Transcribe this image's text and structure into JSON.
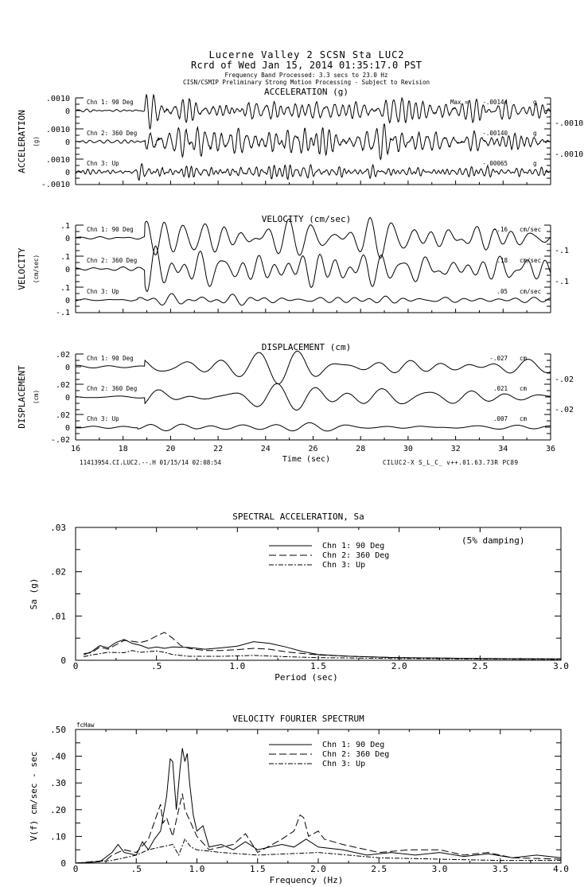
{
  "header": {
    "title_line1": "Lucerne Valley 2    SCSN Sta LUC2",
    "title_line2": "Rcrd of Wed Jan 15, 2014 01:35:17.0 PST",
    "band": "Frequency Band Processed: 3.3 secs to 23.0 Hz",
    "note": "CISN/CSMIP Preliminary Strong Motion Processing - Subject to Revision"
  },
  "footer": {
    "record_id": "11413954.CI.LUC2.--.H 01/15/14 02:08:54",
    "xlabel": "Time (sec)",
    "version": "CILUC2-X  S_L_C_  v++.01.63.73R PC89"
  },
  "chart_data": [
    {
      "type": "line",
      "title": "ACCELERATION (g)",
      "ylabel": "ACCELERATION",
      "yunit": "(g)",
      "xlim": [
        16,
        36
      ],
      "ylim": [
        -0.001,
        0.001
      ],
      "yticks": [
        ".0010",
        "0",
        "-.0010"
      ],
      "max_label": "Max =",
      "channels": [
        {
          "name": "Chn 1: 90 Deg",
          "peak": -0.00144,
          "peak_label": "-.00144",
          "unit": "g"
        },
        {
          "name": "Chn 2: 360 Deg",
          "peak": -0.0014,
          "peak_label": "-.00140",
          "unit": "g"
        },
        {
          "name": "Chn 3: Up",
          "peak": -0.00065,
          "peak_label": "-.00065",
          "unit": "g"
        }
      ]
    },
    {
      "type": "line",
      "title": "VELOCITY (cm/sec)",
      "ylabel": "VELOCITY",
      "yunit": "(cm/sec)",
      "xlim": [
        16,
        36
      ],
      "ylim": [
        -0.1,
        0.1
      ],
      "yticks": [
        ".1",
        "0",
        "-.1"
      ],
      "channels": [
        {
          "name": "Chn 1: 90 Deg",
          "peak": -0.16,
          "peak_label": "-.16",
          "unit": "cm/sec"
        },
        {
          "name": "Chn 2: 360 Deg",
          "peak": 0.18,
          "peak_label": ".18",
          "unit": "cm/sec"
        },
        {
          "name": "Chn 3: Up",
          "peak": 0.05,
          "peak_label": ".05",
          "unit": "cm/sec"
        }
      ]
    },
    {
      "type": "line",
      "title": "DISPLACEMENT (cm)",
      "ylabel": "DISPLACEMENT",
      "yunit": "(cm)",
      "xlim": [
        16,
        36
      ],
      "ylim": [
        -0.02,
        0.02
      ],
      "yticks": [
        ".02",
        "0",
        "-.02"
      ],
      "xticks": [
        "16",
        "18",
        "20",
        "22",
        "24",
        "26",
        "28",
        "30",
        "32",
        "34",
        "36"
      ],
      "channels": [
        {
          "name": "Chn 1: 90 Deg",
          "peak": -0.027,
          "peak_label": "-.027",
          "unit": "cm"
        },
        {
          "name": "Chn 2: 360 Deg",
          "peak": 0.021,
          "peak_label": ".021",
          "unit": "cm"
        },
        {
          "name": "Chn 3: Up",
          "peak": 0.007,
          "peak_label": ".007",
          "unit": "cm"
        }
      ]
    },
    {
      "type": "line",
      "title": "SPECTRAL ACCELERATION, Sa",
      "annotation": "(5% damping)",
      "xlabel": "Period (sec)",
      "ylabel": "Sa (g)",
      "xlim": [
        0,
        3.0
      ],
      "ylim": [
        0,
        0.03
      ],
      "xticks": [
        "0",
        ".5",
        "1.0",
        "1.5",
        "2.0",
        "2.5",
        "3.0"
      ],
      "yticks": [
        "0",
        ".01",
        ".02",
        ".03"
      ],
      "legend_position": "top-center",
      "series": [
        {
          "name": "Chn 1: 90 Deg",
          "style": "solid",
          "x": [
            0.05,
            0.1,
            0.15,
            0.2,
            0.25,
            0.3,
            0.35,
            0.4,
            0.45,
            0.5,
            0.55,
            0.6,
            0.7,
            0.8,
            0.9,
            1.0,
            1.1,
            1.2,
            1.3,
            1.4,
            1.5,
            1.7,
            2.0,
            2.5,
            3.0
          ],
          "y": [
            0.0012,
            0.002,
            0.0033,
            0.0028,
            0.004,
            0.0047,
            0.0038,
            0.0034,
            0.0027,
            0.003,
            0.0027,
            0.003,
            0.0029,
            0.0025,
            0.0028,
            0.0032,
            0.0042,
            0.0038,
            0.003,
            0.002,
            0.0013,
            0.0009,
            0.0006,
            0.0004,
            0.0003
          ]
        },
        {
          "name": "Chn 2: 360 Deg",
          "style": "dashed",
          "x": [
            0.05,
            0.1,
            0.15,
            0.2,
            0.25,
            0.3,
            0.35,
            0.4,
            0.45,
            0.5,
            0.55,
            0.6,
            0.65,
            0.7,
            0.8,
            0.9,
            1.0,
            1.1,
            1.2,
            1.3,
            1.5,
            1.7,
            2.0,
            2.5,
            3.0
          ],
          "y": [
            0.0015,
            0.0017,
            0.003,
            0.0025,
            0.0035,
            0.0045,
            0.0043,
            0.004,
            0.0045,
            0.0055,
            0.0063,
            0.005,
            0.0033,
            0.0027,
            0.0022,
            0.0022,
            0.0024,
            0.0027,
            0.0025,
            0.0019,
            0.0012,
            0.0009,
            0.0006,
            0.0004,
            0.0003
          ]
        },
        {
          "name": "Chn 3: Up",
          "style": "dash-dot",
          "x": [
            0.05,
            0.1,
            0.2,
            0.3,
            0.35,
            0.4,
            0.5,
            0.55,
            0.6,
            0.7,
            0.9,
            1.1,
            1.3,
            1.5,
            2.0,
            3.0
          ],
          "y": [
            0.0008,
            0.0012,
            0.0018,
            0.0017,
            0.0022,
            0.0018,
            0.0021,
            0.0018,
            0.0013,
            0.0009,
            0.0009,
            0.0011,
            0.0008,
            0.0006,
            0.0004,
            0.0002
          ]
        }
      ]
    },
    {
      "type": "line",
      "title": "VELOCITY FOURIER SPECTRUM",
      "corner_label": "fcHaw",
      "xlabel": "Frequency (Hz)",
      "ylabel": "V(f)   cm/sec - sec",
      "xlim": [
        0,
        4.0
      ],
      "ylim": [
        0,
        0.5
      ],
      "xticks": [
        "0",
        ".5",
        "1.0",
        "1.5",
        "2.0",
        "2.5",
        "3.0",
        "3.5",
        "4.0"
      ],
      "yticks": [
        "0",
        ".10",
        ".20",
        ".30",
        ".40",
        ".50"
      ],
      "legend_position": "top-center",
      "series": [
        {
          "name": "Chn 1: 90 Deg",
          "style": "solid",
          "x": [
            0,
            0.2,
            0.3,
            0.35,
            0.4,
            0.5,
            0.55,
            0.6,
            0.65,
            0.7,
            0.75,
            0.78,
            0.8,
            0.83,
            0.86,
            0.88,
            0.9,
            0.92,
            0.94,
            0.97,
            1.0,
            1.05,
            1.1,
            1.2,
            1.3,
            1.4,
            1.5,
            1.6,
            1.7,
            1.8,
            1.9,
            2.0,
            2.2,
            2.4,
            2.6,
            2.8,
            3.0,
            3.2,
            3.4,
            3.6,
            3.8,
            4.0
          ],
          "y": [
            0,
            0.005,
            0.04,
            0.07,
            0.04,
            0.03,
            0.08,
            0.05,
            0.09,
            0.12,
            0.25,
            0.39,
            0.38,
            0.2,
            0.35,
            0.43,
            0.38,
            0.41,
            0.3,
            0.18,
            0.12,
            0.14,
            0.06,
            0.07,
            0.05,
            0.08,
            0.05,
            0.06,
            0.07,
            0.06,
            0.09,
            0.06,
            0.05,
            0.03,
            0.04,
            0.03,
            0.04,
            0.025,
            0.035,
            0.02,
            0.03,
            0.02
          ]
        },
        {
          "name": "Chn 2: 360 Deg",
          "style": "dashed",
          "x": [
            0,
            0.25,
            0.3,
            0.4,
            0.5,
            0.6,
            0.7,
            0.72,
            0.75,
            0.8,
            0.85,
            0.88,
            0.9,
            0.95,
            1.0,
            1.1,
            1.3,
            1.4,
            1.5,
            1.7,
            1.8,
            1.85,
            1.88,
            1.92,
            2.0,
            2.05,
            2.2,
            2.5,
            2.75,
            3.0,
            3.2,
            3.4,
            3.6,
            4.0
          ],
          "y": [
            0,
            0.01,
            0.03,
            0.05,
            0.04,
            0.09,
            0.22,
            0.15,
            0.17,
            0.1,
            0.2,
            0.26,
            0.2,
            0.15,
            0.1,
            0.05,
            0.07,
            0.11,
            0.04,
            0.09,
            0.12,
            0.18,
            0.17,
            0.1,
            0.12,
            0.09,
            0.07,
            0.04,
            0.05,
            0.05,
            0.03,
            0.04,
            0.02,
            0.015
          ]
        },
        {
          "name": "Chn 3: Up",
          "style": "dash-dot",
          "x": [
            0,
            0.3,
            0.4,
            0.5,
            0.6,
            0.7,
            0.8,
            0.85,
            0.9,
            0.95,
            1.0,
            1.2,
            1.5,
            2.0,
            2.5,
            3.0,
            3.5,
            4.0
          ],
          "y": [
            0,
            0.01,
            0.02,
            0.03,
            0.05,
            0.06,
            0.07,
            0.03,
            0.09,
            0.06,
            0.05,
            0.04,
            0.03,
            0.04,
            0.02,
            0.015,
            0.01,
            0.01
          ]
        }
      ]
    }
  ]
}
